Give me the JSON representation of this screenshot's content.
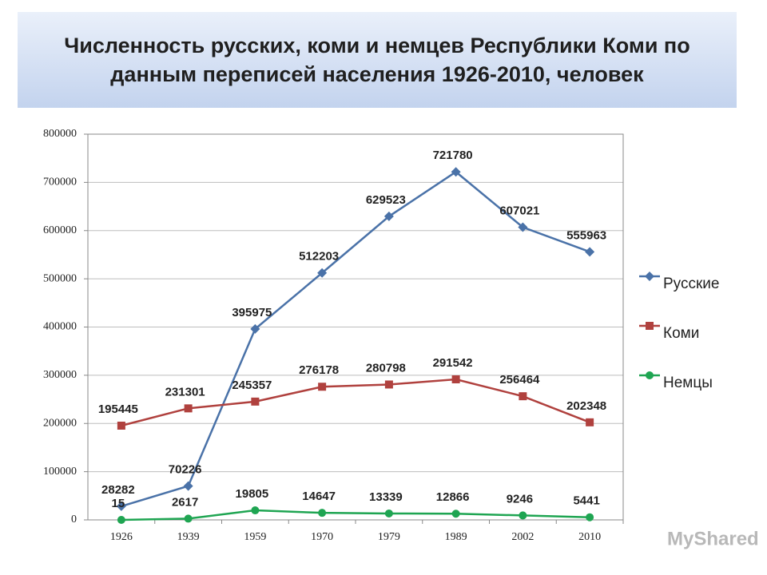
{
  "chart_data": {
    "type": "line",
    "title": "Численность русских, коми и немцев Республики Коми по данным переписей населения 1926-2010, человек",
    "categories": [
      "1926",
      "1939",
      "1959",
      "1970",
      "1979",
      "1989",
      "2002",
      "2010"
    ],
    "series": [
      {
        "name": "Русские",
        "color": "#4a72a8",
        "marker": "diamond",
        "values": [
          28282,
          70226,
          395975,
          512203,
          629523,
          721780,
          607021,
          555963
        ]
      },
      {
        "name": "Коми",
        "color": "#b0413e",
        "marker": "square",
        "values": [
          195445,
          231301,
          245357,
          276178,
          280798,
          291542,
          256464,
          202348
        ]
      },
      {
        "name": "Немцы",
        "color": "#1fa552",
        "marker": "circle",
        "values": [
          15,
          2617,
          19805,
          14647,
          13339,
          12866,
          9246,
          5441
        ]
      }
    ],
    "ylim": [
      0,
      800000
    ],
    "yticks": [
      0,
      100000,
      200000,
      300000,
      400000,
      500000,
      600000,
      700000,
      800000
    ],
    "grid": true,
    "legend": "right"
  },
  "watermark": "MyShared"
}
